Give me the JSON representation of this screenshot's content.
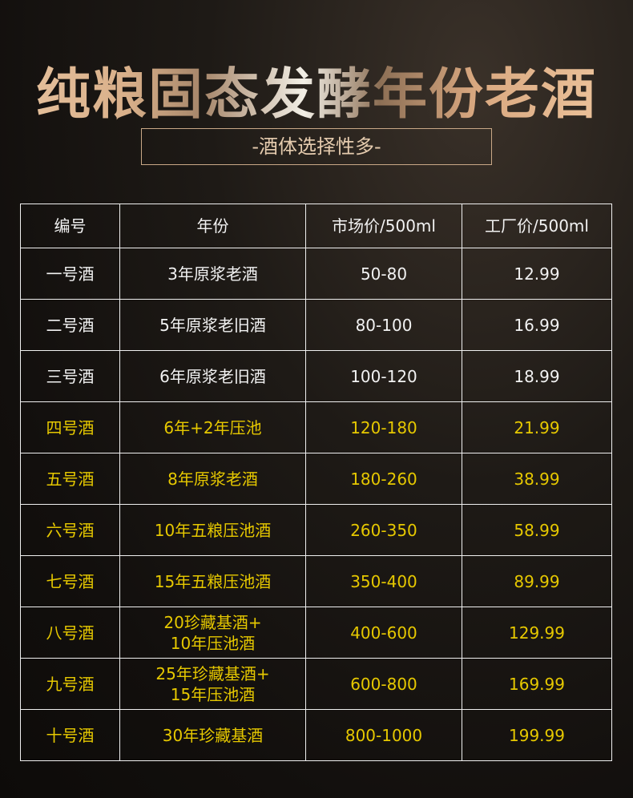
{
  "title": "纯粮固态发酵年份老酒",
  "subtitle": "-酒体选择性多-",
  "colors": {
    "highlight": "#e6c800",
    "normal": "#f2f2f2"
  },
  "table": {
    "headers": [
      "编号",
      "年份",
      "市场价/500ml",
      "工厂价/500ml"
    ],
    "rows": [
      {
        "id": "一号酒",
        "age": "3年原浆老酒",
        "market": "50-80",
        "factory": "12.99",
        "highlight": false
      },
      {
        "id": "二号酒",
        "age": "5年原浆老旧酒",
        "market": "80-100",
        "factory": "16.99",
        "highlight": false
      },
      {
        "id": "三号酒",
        "age": "6年原浆老旧酒",
        "market": "100-120",
        "factory": "18.99",
        "highlight": false
      },
      {
        "id": "四号酒",
        "age": "6年+2年压池",
        "market": "120-180",
        "factory": "21.99",
        "highlight": true
      },
      {
        "id": "五号酒",
        "age": "8年原浆老酒",
        "market": "180-260",
        "factory": "38.99",
        "highlight": true
      },
      {
        "id": "六号酒",
        "age": "10年五粮压池酒",
        "market": "260-350",
        "factory": "58.99",
        "highlight": true
      },
      {
        "id": "七号酒",
        "age": "15年五粮压池酒",
        "market": "350-400",
        "factory": "89.99",
        "highlight": true
      },
      {
        "id": "八号酒",
        "age": "20珍藏基酒+\n10年压池酒",
        "market": "400-600",
        "factory": "129.99",
        "highlight": true
      },
      {
        "id": "九号酒",
        "age": "25年珍藏基酒+\n15年压池酒",
        "market": "600-800",
        "factory": "169.99",
        "highlight": true
      },
      {
        "id": "十号酒",
        "age": "30年珍藏基酒",
        "market": "800-1000",
        "factory": "199.99",
        "highlight": true
      }
    ]
  }
}
